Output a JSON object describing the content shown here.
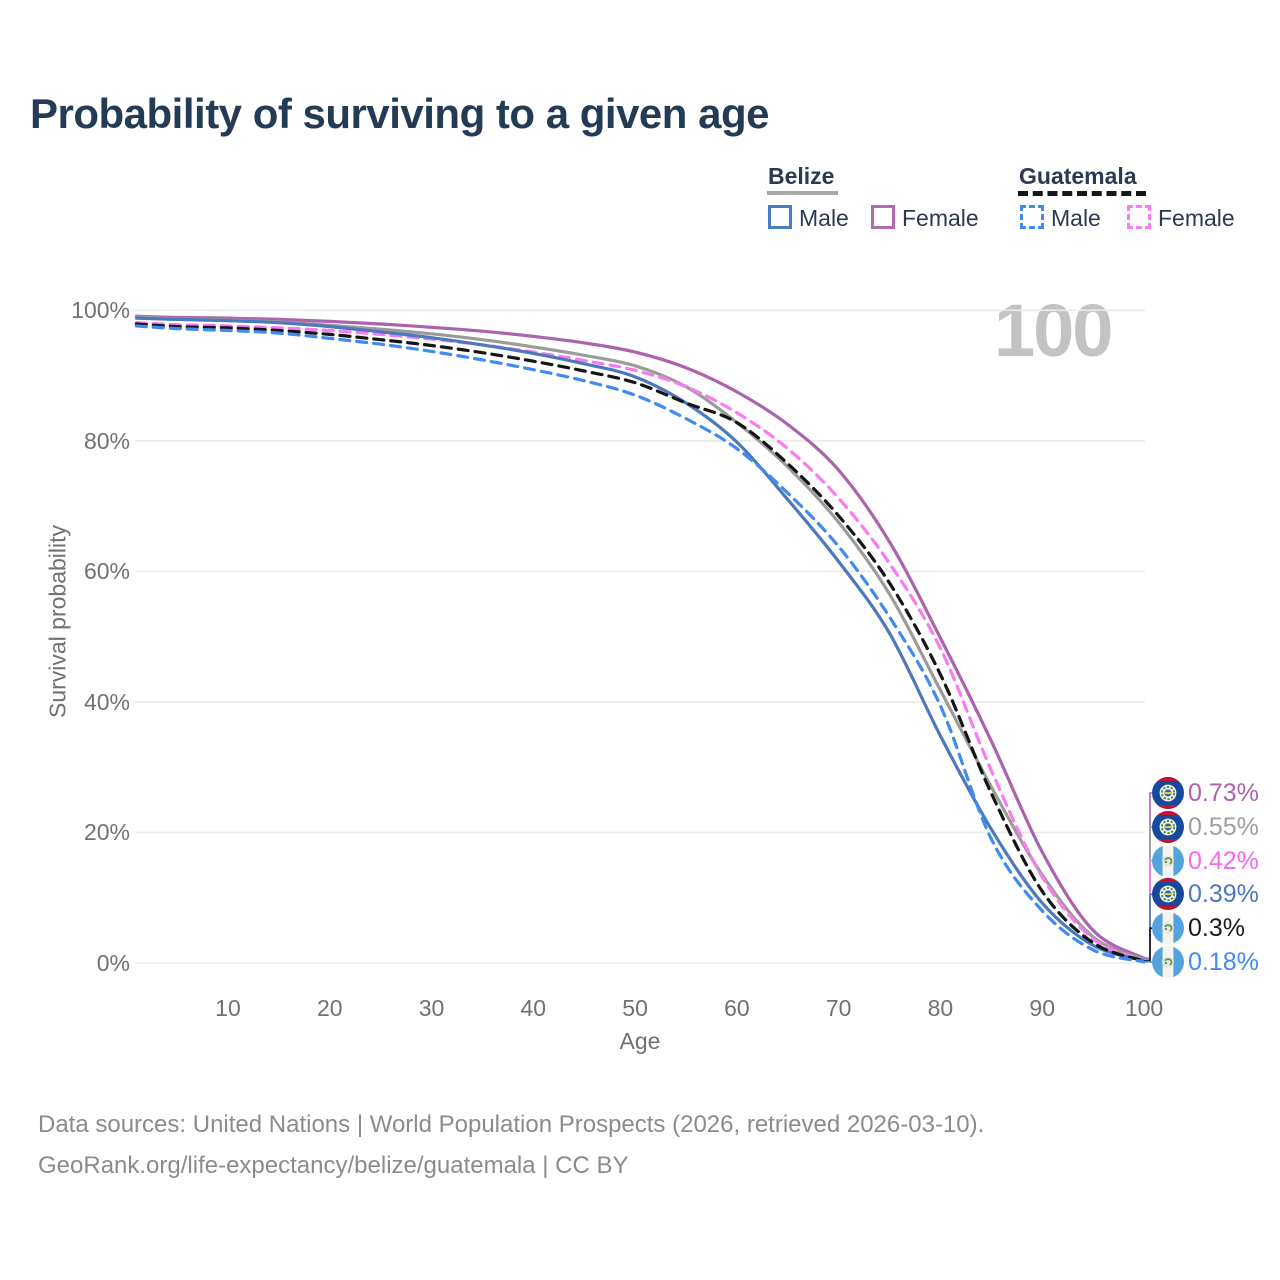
{
  "title": "Probability of surviving to a given age",
  "watermark": "100",
  "legend": {
    "groups": [
      {
        "country": "Belize",
        "line_style": "solid",
        "underline_color": "#a8a8a8",
        "items": [
          {
            "label": "Male",
            "color": "#4a7cc2",
            "dashed": false
          },
          {
            "label": "Female",
            "color": "#b26ab2",
            "dashed": false
          }
        ]
      },
      {
        "country": "Guatemala",
        "line_style": "dashed",
        "underline_color": "#161616",
        "items": [
          {
            "label": "Male",
            "color": "#3f8af3",
            "dashed": true
          },
          {
            "label": "Female",
            "color": "#f97af2",
            "dashed": true
          }
        ]
      }
    ]
  },
  "chart_data": {
    "type": "line",
    "title": "Probability of surviving to a given age",
    "xlabel": "Age",
    "ylabel": "Survival probability",
    "xlim": [
      1,
      100
    ],
    "ylim": [
      0,
      100
    ],
    "grid": "horizontal",
    "x_ticks": [
      10,
      20,
      30,
      40,
      50,
      60,
      70,
      80,
      90,
      100
    ],
    "y_ticks": [
      0,
      20,
      40,
      60,
      80,
      100
    ],
    "y_tick_labels": [
      "0%",
      "20%",
      "40%",
      "60%",
      "80%",
      "100%"
    ],
    "ages": [
      1,
      5,
      10,
      15,
      20,
      25,
      30,
      35,
      40,
      45,
      50,
      55,
      60,
      65,
      70,
      75,
      80,
      85,
      90,
      95,
      100
    ],
    "series": [
      {
        "name": "Belize Female",
        "country": "Belize",
        "sex": "Female",
        "color": "#ac62ac",
        "dashed": false,
        "flag": "belize",
        "end_label": "0.73%",
        "label_color": "#ac62ac",
        "values": [
          99.1,
          98.9,
          98.8,
          98.6,
          98.3,
          97.9,
          97.4,
          96.8,
          96.0,
          95.0,
          93.6,
          91.2,
          87.5,
          82.5,
          75.5,
          64.5,
          49.8,
          34.0,
          17.0,
          5.0,
          0.73
        ]
      },
      {
        "name": "Belize Both sexes",
        "country": "Belize",
        "sex": "Both",
        "color": "#9b9b9b",
        "dashed": false,
        "flag": "belize",
        "end_label": "0.55%",
        "label_color": "#9e9e9e",
        "values": [
          99.0,
          98.7,
          98.5,
          98.2,
          97.7,
          97.1,
          96.4,
          95.5,
          94.4,
          93.1,
          91.5,
          88.3,
          82.8,
          76.0,
          67.5,
          56.5,
          41.8,
          27.0,
          13.5,
          4.0,
          0.55
        ]
      },
      {
        "name": "Guatemala Female",
        "country": "Guatemala",
        "sex": "Female",
        "color": "#f87bf0",
        "dashed": true,
        "flag": "guatemala",
        "end_label": "0.42%",
        "label_color": "#f866ee",
        "values": [
          98.1,
          97.8,
          97.6,
          97.3,
          96.9,
          96.3,
          95.6,
          94.7,
          93.6,
          92.3,
          90.8,
          88.3,
          84.3,
          78.8,
          71.2,
          61.2,
          48.2,
          29.5,
          13.2,
          3.7,
          0.42
        ]
      },
      {
        "name": "Belize Male",
        "country": "Belize",
        "sex": "Male",
        "color": "#4b79bb",
        "dashed": false,
        "flag": "belize",
        "end_label": "0.39%",
        "label_color": "#4b79bb",
        "values": [
          98.8,
          98.6,
          98.4,
          98.1,
          97.5,
          96.7,
          95.8,
          94.7,
          93.4,
          91.8,
          89.8,
          85.8,
          79.8,
          71.0,
          61.5,
          50.5,
          34.8,
          20.5,
          9.2,
          2.7,
          0.39
        ]
      },
      {
        "name": "Guatemala Both sexes",
        "country": "Guatemala",
        "sex": "Both",
        "color": "#151515",
        "dashed": true,
        "flag": "guatemala",
        "end_label": "0.3%",
        "label_color": "#1a1a1a",
        "values": [
          97.9,
          97.5,
          97.3,
          96.9,
          96.3,
          95.5,
          94.6,
          93.5,
          92.2,
          90.7,
          88.9,
          85.8,
          82.8,
          76.5,
          68.5,
          58.2,
          44.2,
          26.0,
          11.0,
          3.1,
          0.3
        ]
      },
      {
        "name": "Guatemala Male",
        "country": "Guatemala",
        "sex": "Male",
        "color": "#3f8af3",
        "dashed": true,
        "flag": "guatemala",
        "end_label": "0.18%",
        "label_color": "#3f8af3",
        "values": [
          97.6,
          97.2,
          96.9,
          96.5,
          95.7,
          94.8,
          93.7,
          92.4,
          90.9,
          89.2,
          87.0,
          83.4,
          78.8,
          72.0,
          63.8,
          53.0,
          39.4,
          19.0,
          8.0,
          2.0,
          0.18
        ]
      }
    ]
  },
  "footer": {
    "line1": "Data sources: United Nations | World Population Prospects (2026, retrieved 2026-03-10).",
    "line2": "GeoRank.org/life-expectancy/belize/guatemala | CC BY"
  }
}
